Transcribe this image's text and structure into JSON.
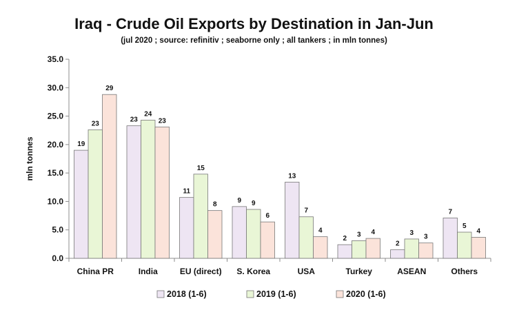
{
  "chart_data": {
    "type": "bar",
    "title": "Iraq - Crude Oil Exports by Destination in Jan-Jun",
    "subtitle": "(jul 2020 ; source: refinitiv ; seaborne only ; all tankers ; in mln tonnes)",
    "xlabel": "",
    "ylabel": "mln tonnes",
    "ylim": [
      0,
      35
    ],
    "yticks": [
      "0.0",
      "5.0",
      "10.0",
      "15.0",
      "20.0",
      "25.0",
      "30.0",
      "35.0"
    ],
    "grid": false,
    "legend_position": "bottom",
    "categories": [
      "China PR",
      "India",
      "EU (direct)",
      "S. Korea",
      "USA",
      "Turkey",
      "ASEAN",
      "Others"
    ],
    "series": [
      {
        "name": "2018 (1-6)",
        "color": "#EEE5F3",
        "values": [
          19.0,
          23.3,
          10.7,
          9.1,
          13.4,
          2.4,
          1.5,
          7.1
        ],
        "labels": [
          "19",
          "23",
          "11",
          "9",
          "13",
          "2",
          "2",
          "7"
        ]
      },
      {
        "name": "2019 (1-6)",
        "color": "#E9F6D6",
        "values": [
          22.6,
          24.3,
          14.8,
          8.6,
          7.3,
          3.1,
          3.4,
          4.6
        ],
        "labels": [
          "23",
          "24",
          "15",
          "9",
          "7",
          "3",
          "3",
          "5"
        ]
      },
      {
        "name": "2020 (1-6)",
        "color": "#FBE3DA",
        "values": [
          28.8,
          23.1,
          8.4,
          6.4,
          3.8,
          3.5,
          2.7,
          3.7
        ],
        "labels": [
          "29",
          "23",
          "8",
          "6",
          "4",
          "4",
          "3",
          "4"
        ]
      }
    ]
  }
}
